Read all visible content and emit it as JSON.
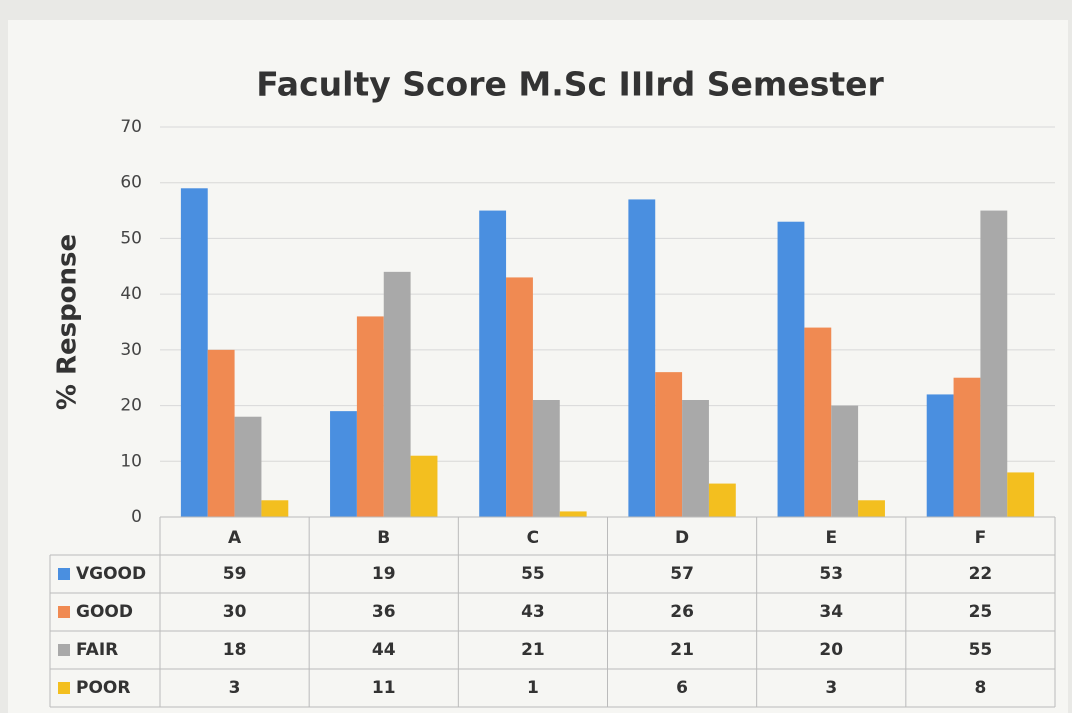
{
  "chart_data": {
    "type": "bar",
    "title": "Faculty Score M.Sc IIIrd  Semester",
    "y_label": "% Response",
    "categories": [
      "A",
      "B",
      "C",
      "D",
      "E",
      "F"
    ],
    "series": [
      {
        "name": "VGOOD",
        "color": "#4a8fe0",
        "values": [
          59,
          19,
          55,
          57,
          53,
          22
        ]
      },
      {
        "name": "GOOD",
        "color": "#f08a52",
        "values": [
          30,
          36,
          43,
          26,
          34,
          25
        ]
      },
      {
        "name": "FAIR",
        "color": "#a9a9a9",
        "values": [
          18,
          44,
          21,
          21,
          20,
          55
        ]
      },
      {
        "name": "POOR",
        "color": "#f3bf1f",
        "values": [
          3,
          11,
          1,
          6,
          3,
          8
        ]
      }
    ],
    "ylim": [
      0,
      70
    ],
    "yticks": [
      0,
      10,
      20,
      30,
      40,
      50,
      60,
      70
    ],
    "grid": true,
    "data_table": true
  }
}
